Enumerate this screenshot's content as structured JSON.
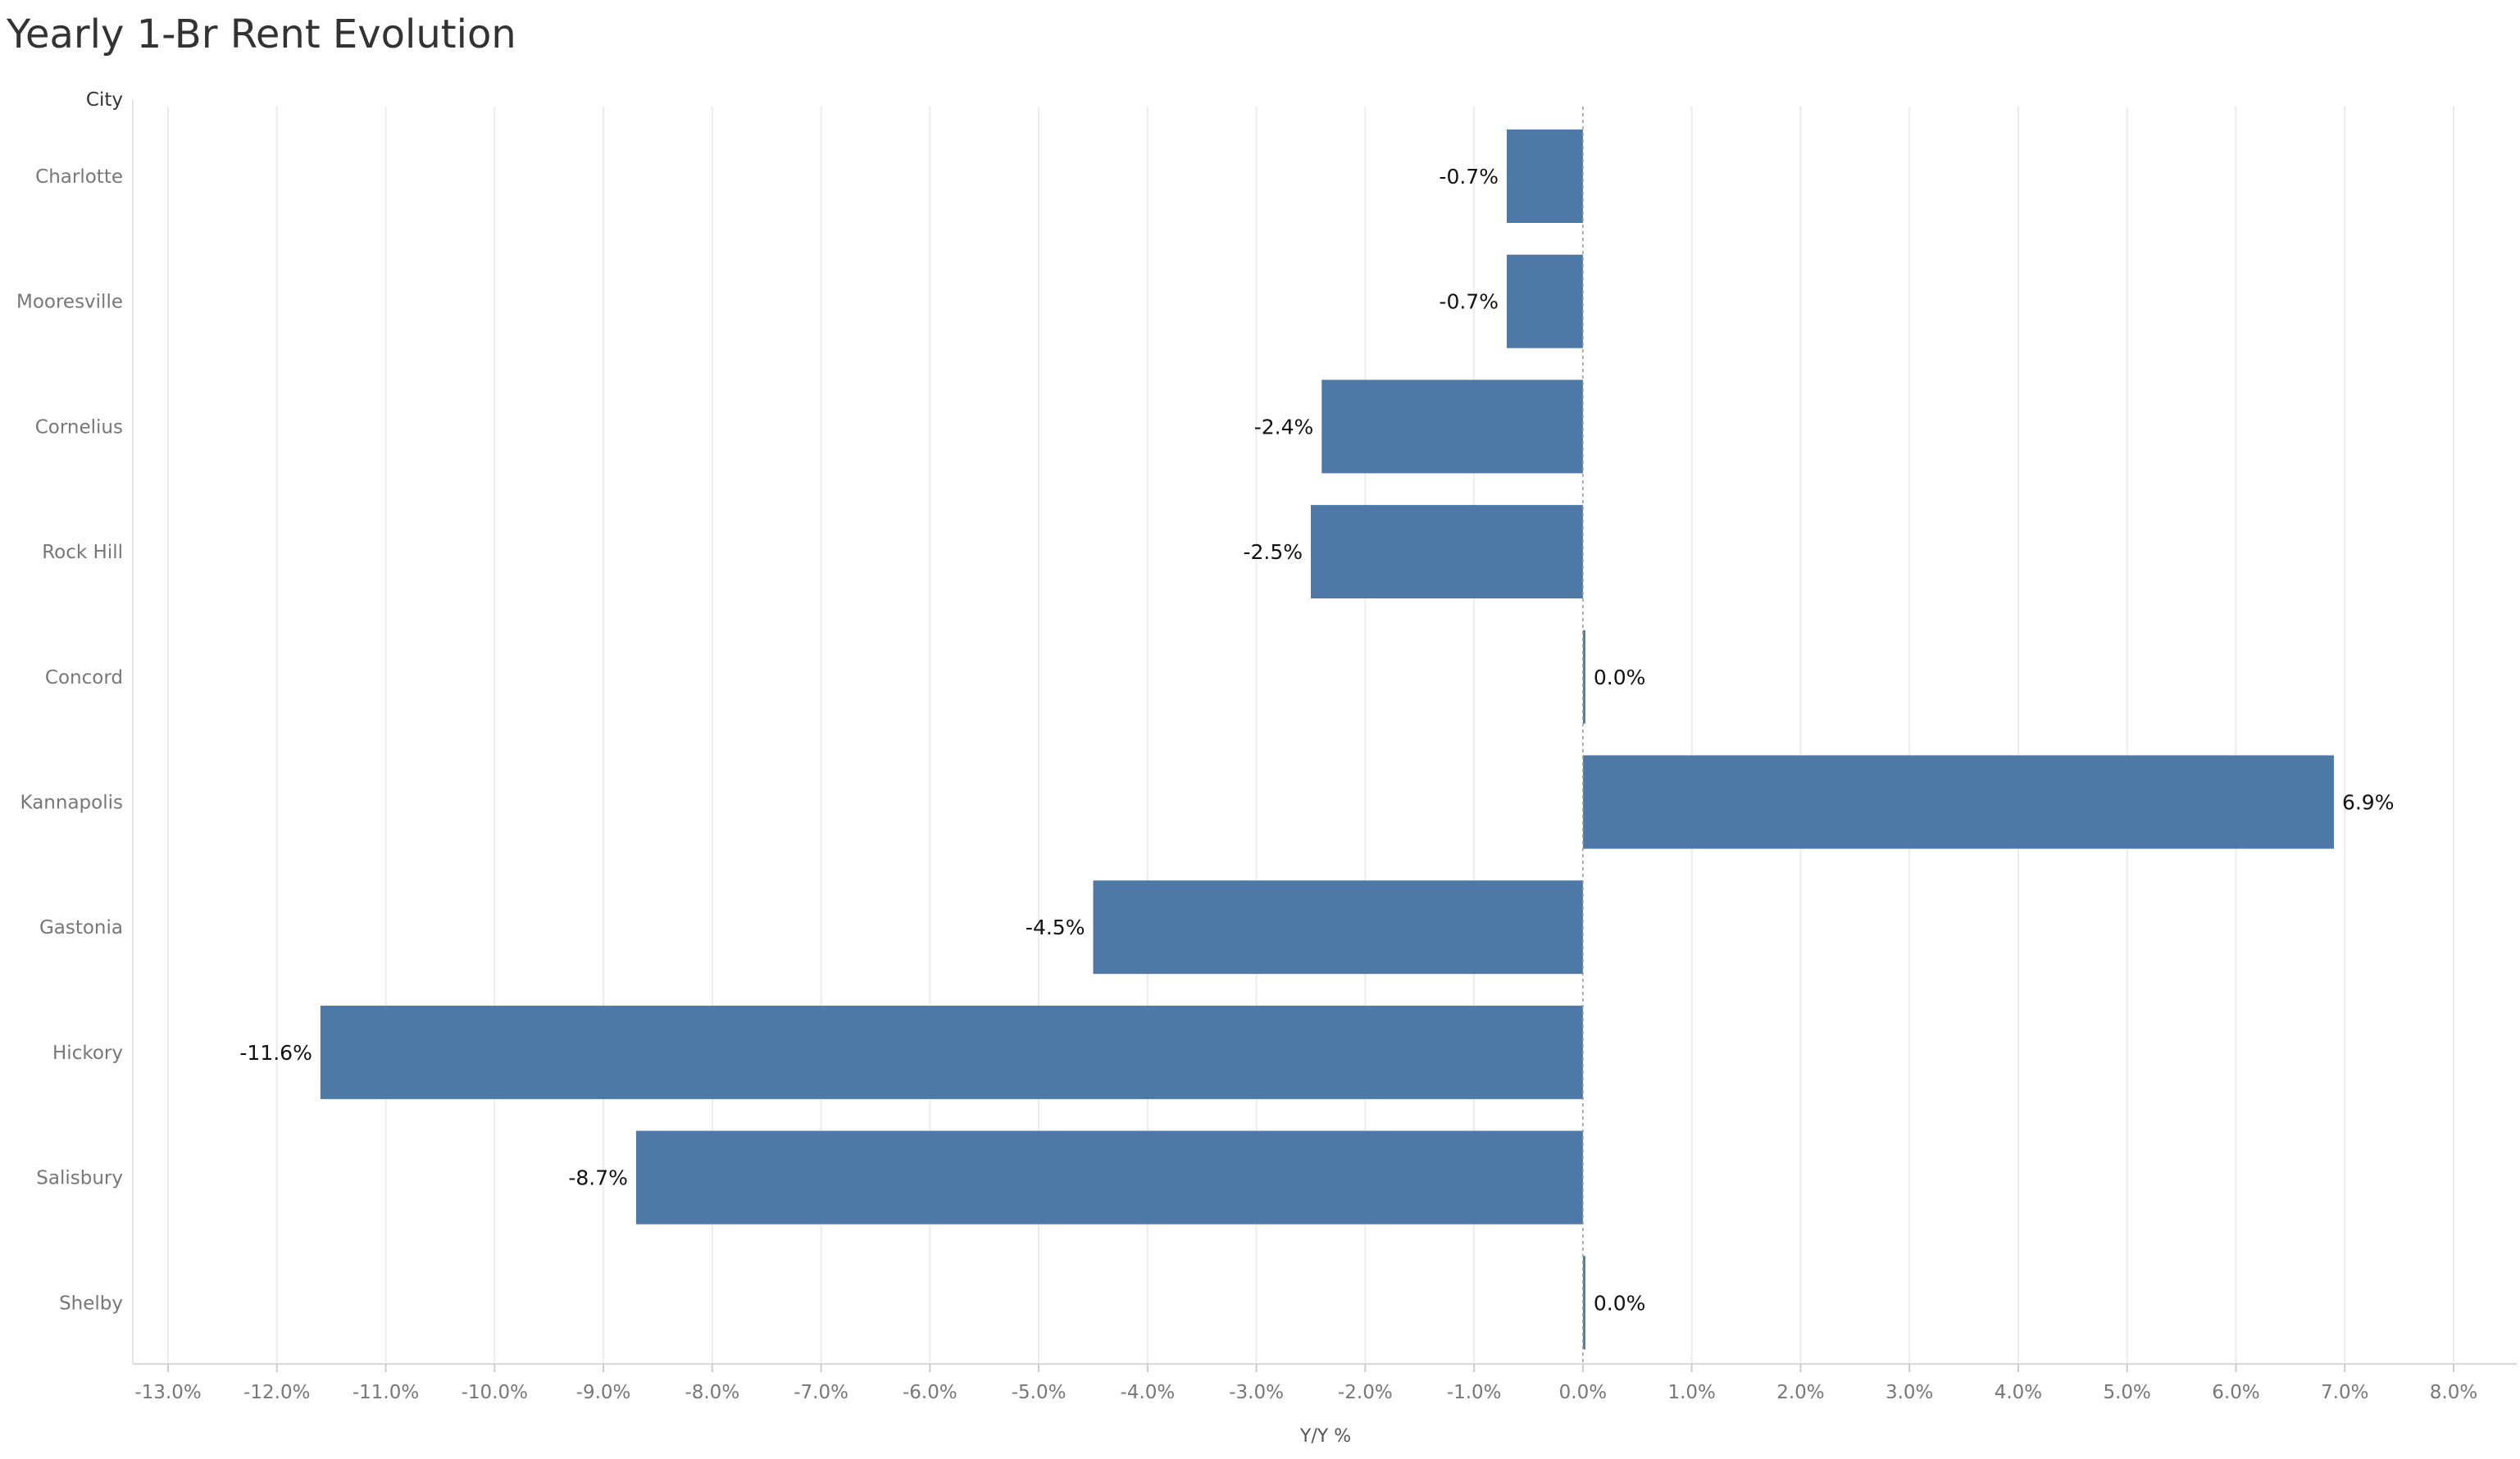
{
  "chart_data": {
    "type": "bar",
    "orientation": "horizontal",
    "title": "Yearly 1-Br Rent Evolution",
    "row_header": "City",
    "xlabel": "Y/Y %",
    "categories": [
      "Charlotte",
      "Mooresville",
      "Cornelius",
      "Rock Hill",
      "Concord",
      "Kannapolis",
      "Gastonia",
      "Hickory",
      "Salisbury",
      "Shelby"
    ],
    "values": [
      -0.7,
      -0.7,
      -2.4,
      -2.5,
      0.0,
      6.9,
      -4.5,
      -11.6,
      -8.7,
      0.0
    ],
    "value_labels": [
      "-0.7%",
      "-0.7%",
      "-2.4%",
      "-2.5%",
      "0.0%",
      "6.9%",
      "-4.5%",
      "-11.6%",
      "-8.7%",
      "0.0%"
    ],
    "xlim": [
      -13.0,
      8.0
    ],
    "xticks": [
      -13,
      -12,
      -11,
      -10,
      -9,
      -8,
      -7,
      -6,
      -5,
      -4,
      -3,
      -2,
      -1,
      0,
      1,
      2,
      3,
      4,
      5,
      6,
      7,
      8
    ],
    "xtick_labels": [
      "-13.0%",
      "-12.0%",
      "-11.0%",
      "-10.0%",
      "-9.0%",
      "-8.0%",
      "-7.0%",
      "-6.0%",
      "-5.0%",
      "-4.0%",
      "-3.0%",
      "-2.0%",
      "-1.0%",
      "0.0%",
      "1.0%",
      "2.0%",
      "3.0%",
      "4.0%",
      "5.0%",
      "6.0%",
      "7.0%",
      "8.0%"
    ],
    "grid": "vertical",
    "bar_color": "#4e79a7"
  }
}
